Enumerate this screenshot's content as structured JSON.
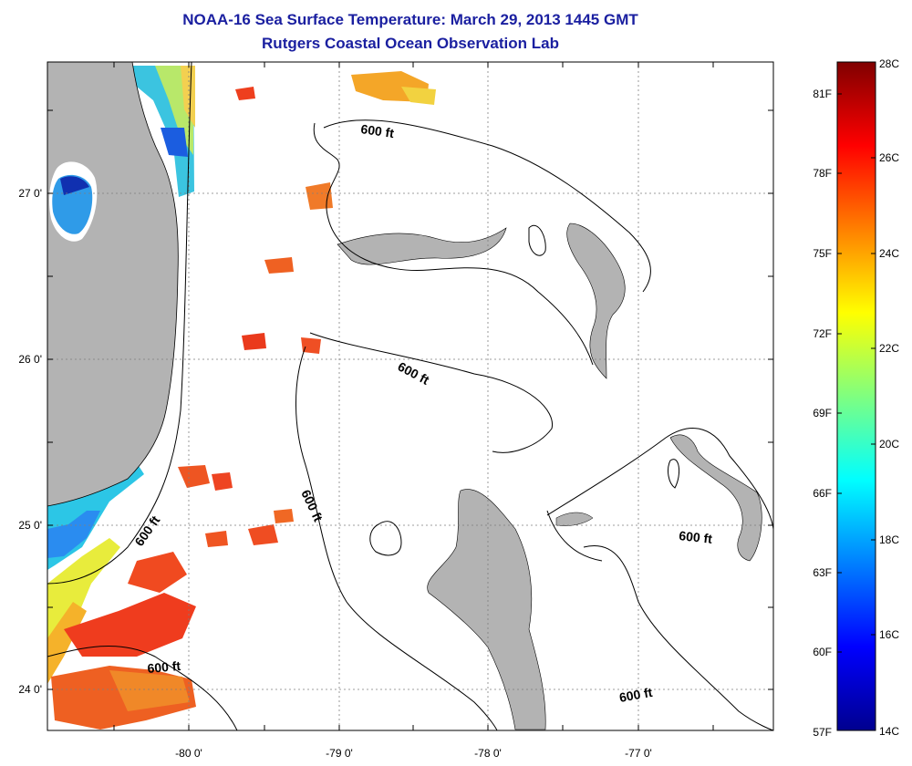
{
  "title": {
    "line1": "NOAA-16 Sea Surface Temperature:  March 29, 2013 1445 GMT",
    "line2": "Rutgers Coastal Ocean Observation Lab"
  },
  "axes": {
    "lon_labels": [
      "-80 0'",
      "-79 0'",
      "-78 0'",
      "-77 0'"
    ],
    "lat_labels": [
      "27 0'",
      "26 0'",
      "25 0'",
      "24 0'"
    ]
  },
  "contour_label": "600 ft",
  "colorbar": {
    "fahrenheit_labels": [
      "81F",
      "78F",
      "75F",
      "72F",
      "69F",
      "66F",
      "63F",
      "60F",
      "57F"
    ],
    "celsius_labels": [
      "28C",
      "26C",
      "24C",
      "22C",
      "20C",
      "18C",
      "16C",
      "14C"
    ],
    "range_c": [
      14,
      28
    ],
    "colormap": "jet"
  },
  "colors": {
    "title": "#1a1fa0",
    "land": "#b3b3b3",
    "grid": "#7f7f7f"
  }
}
